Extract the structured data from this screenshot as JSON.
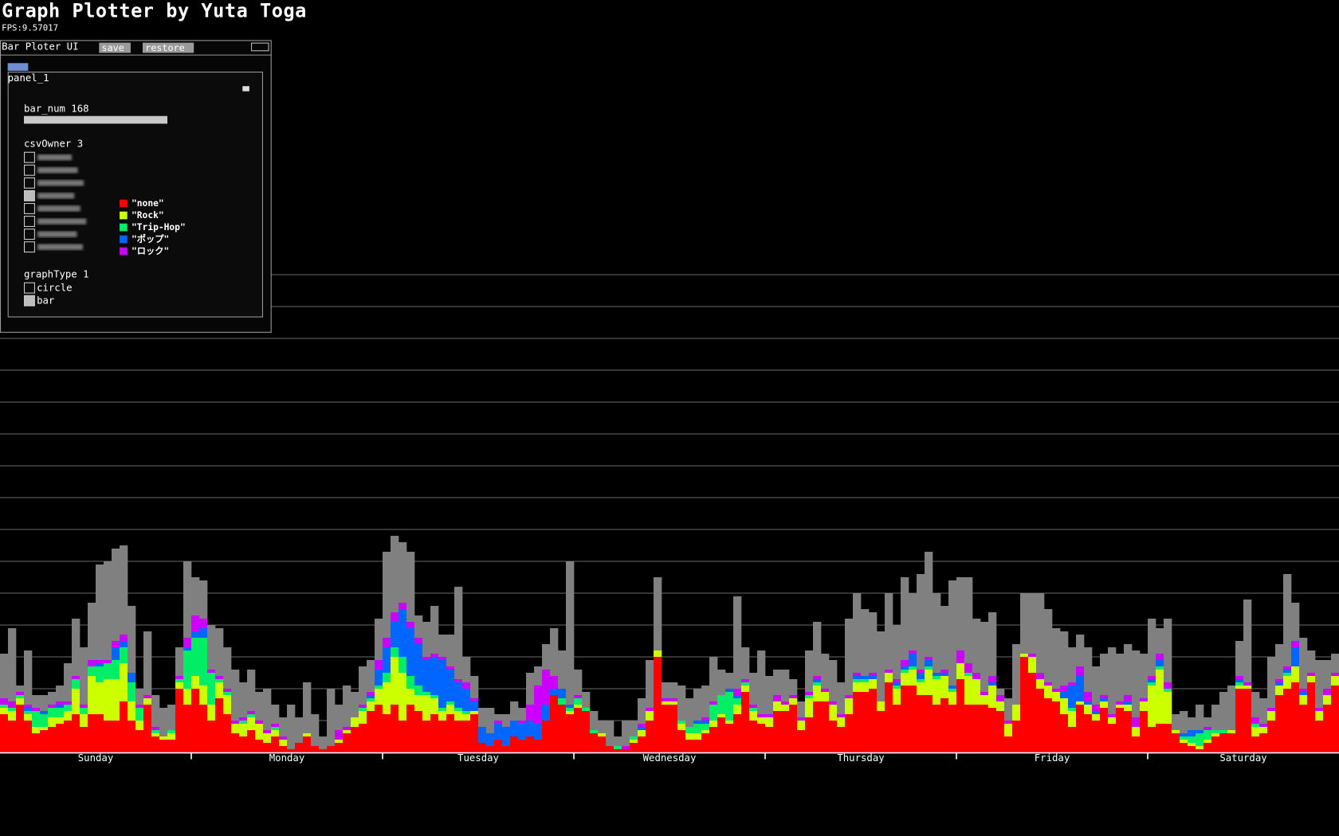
{
  "ui": {
    "title": "Graph Plotter by Yuta Toga",
    "fps": "FPS:9.57017",
    "window_title": "Bar Ploter UI",
    "save": "save",
    "restore": "restore",
    "panel": "panel_1",
    "bar_num": "bar_num 168",
    "csv_owner": {
      "label": "csvOwner 3",
      "checked": [
        false,
        false,
        false,
        true,
        false,
        false,
        false,
        false
      ]
    },
    "graph_type": {
      "label": "graphType 1",
      "options": [
        {
          "label": "circle",
          "checked": false
        },
        {
          "label": "bar",
          "checked": true
        }
      ]
    }
  },
  "chart_data": {
    "type": "bar",
    "stacked": true,
    "grid": true,
    "categories": [
      null,
      null,
      null,
      null,
      null,
      null,
      null,
      null,
      null,
      null,
      null,
      null,
      "Sunday",
      null,
      null,
      null,
      null,
      null,
      null,
      null,
      null,
      null,
      null,
      null,
      null,
      null,
      null,
      null,
      null,
      null,
      null,
      null,
      null,
      null,
      null,
      null,
      "Monday",
      null,
      null,
      null,
      null,
      null,
      null,
      null,
      null,
      null,
      null,
      null,
      null,
      null,
      null,
      null,
      null,
      null,
      null,
      null,
      null,
      null,
      null,
      null,
      "Tuesday",
      null,
      null,
      null,
      null,
      null,
      null,
      null,
      null,
      null,
      null,
      null,
      null,
      null,
      null,
      null,
      null,
      null,
      null,
      null,
      null,
      null,
      null,
      null,
      "Wednesday",
      null,
      null,
      null,
      null,
      null,
      null,
      null,
      null,
      null,
      null,
      null,
      null,
      null,
      null,
      null,
      null,
      null,
      null,
      null,
      null,
      null,
      null,
      null,
      "Thursday",
      null,
      null,
      null,
      null,
      null,
      null,
      null,
      null,
      null,
      null,
      null,
      null,
      null,
      null,
      null,
      null,
      null,
      null,
      null,
      null,
      null,
      null,
      null,
      "Friday",
      null,
      null,
      null,
      null,
      null,
      null,
      null,
      null,
      null,
      null,
      null,
      null,
      null,
      null,
      null,
      null,
      null,
      null,
      null,
      null,
      null,
      null,
      null,
      "Saturday",
      null,
      null,
      null,
      null,
      null,
      null,
      null,
      null,
      null,
      null,
      null
    ],
    "ylim": [
      0,
      15
    ],
    "yticks": [
      0,
      1,
      2,
      3,
      4,
      5,
      6,
      7,
      8,
      9,
      10,
      11,
      12,
      13,
      14,
      15
    ],
    "series": [
      {
        "name": "\"none\"",
        "color": "#ff0000",
        "values": [
          1.2,
          1.0,
          1.5,
          1.0,
          0.6,
          0.7,
          0.8,
          0.9,
          1.0,
          1.2,
          0.8,
          1.2,
          1.2,
          1.0,
          1.0,
          1.6,
          1.0,
          0.7,
          1.5,
          0.5,
          0.4,
          0.4,
          2.0,
          1.5,
          2.0,
          1.5,
          1.0,
          1.7,
          1.2,
          0.6,
          0.5,
          0.7,
          0.4,
          0.3,
          0.5,
          0.2,
          0.1,
          0.3,
          0.5,
          0.2,
          0.1,
          0.2,
          0.3,
          0.6,
          0.8,
          0.9,
          1.3,
          1.5,
          1.2,
          1.5,
          1.0,
          1.5,
          1.3,
          1.0,
          1.2,
          1.0,
          1.2,
          1.0,
          1.0,
          1.2,
          0.3,
          0.2,
          0.4,
          0.2,
          0.5,
          0.4,
          0.5,
          0.4,
          1.0,
          1.8,
          1.5,
          1.2,
          1.4,
          1.3,
          0.6,
          0.5,
          0.2,
          0.1,
          0.1,
          0.3,
          0.5,
          1.0,
          3.0,
          1.5,
          1.5,
          0.7,
          0.4,
          0.4,
          0.6,
          0.8,
          1.1,
          0.9,
          1.2,
          1.9,
          1.0,
          0.9,
          0.8,
          1.3,
          1.3,
          1.5,
          0.7,
          1.1,
          1.6,
          1.6,
          1.0,
          0.8,
          1.2,
          1.9,
          1.9,
          2.0,
          1.3,
          2.2,
          1.5,
          2.1,
          2.1,
          1.8,
          1.8,
          1.5,
          1.7,
          1.5,
          2.3,
          1.5,
          1.5,
          1.5,
          1.4,
          1.3,
          0.5,
          1.0,
          3.0,
          2.5,
          2.0,
          1.7,
          1.6,
          1.2,
          0.8,
          1.5,
          1.2,
          1.0,
          1.4,
          0.9,
          1.4,
          1.3,
          0.5,
          1.3,
          0.8,
          0.9,
          0.9,
          0.6,
          0.3,
          0.2,
          0.1,
          0.3,
          0.5,
          0.6,
          0.6,
          2.0,
          2.0,
          0.5,
          0.6,
          1.0,
          1.8,
          2.0,
          2.2,
          1.5,
          2.2,
          1.0,
          1.5,
          2.1
        ]
      },
      {
        "name": "\"Rock\"",
        "color": "#ccff00",
        "values": [
          0.2,
          0.3,
          0.2,
          0.2,
          0.2,
          0.1,
          0.3,
          0.2,
          0.3,
          0.8,
          0.4,
          1.2,
          1.0,
          1.3,
          1.3,
          1.2,
          0.6,
          0.3,
          0.2,
          0.1,
          0.1,
          0.2,
          0.2,
          0.5,
          0.4,
          0.6,
          0.5,
          0.5,
          0.6,
          0.3,
          0.4,
          0.4,
          0.5,
          0.3,
          0.2,
          0.2,
          0,
          0,
          0.1,
          0,
          0,
          0,
          0.1,
          0.1,
          0.3,
          0.4,
          0.3,
          0.5,
          1.0,
          1.5,
          1.5,
          0.5,
          0.5,
          0.8,
          0.5,
          0.3,
          0.3,
          0.3,
          0.2,
          0.1,
          0,
          0,
          0,
          0,
          0,
          0,
          0,
          0,
          0,
          0,
          0,
          0.1,
          0.1,
          0,
          0,
          0.1,
          0,
          0,
          0,
          0.1,
          0.2,
          0.3,
          0.2,
          0.1,
          0.1,
          0.2,
          0.2,
          0.2,
          0.1,
          0.2,
          0.1,
          0.1,
          0.3,
          0.2,
          0.3,
          0.2,
          0.3,
          0.3,
          0.2,
          0.2,
          0.3,
          0.6,
          0.5,
          0.3,
          0.5,
          0.3,
          0.5,
          0.3,
          0.3,
          0.3,
          0.3,
          0.3,
          0.5,
          0.4,
          0.5,
          0.4,
          0.8,
          0.8,
          0.7,
          0.4,
          0.5,
          0.9,
          0.8,
          0.3,
          0.7,
          0.3,
          0.4,
          0.5,
          0.1,
          0.5,
          0.3,
          0.4,
          0.3,
          0.5,
          0.5,
          0.1,
          0.3,
          0.2,
          0.2,
          0.2,
          0.1,
          0.2,
          0.3,
          0.3,
          1.3,
          1.7,
          1.0,
          0.1,
          0.1,
          0.1,
          0.1,
          0.1,
          0.1,
          0,
          0.1,
          0.1,
          0.1,
          0.3,
          0.2,
          0.3,
          0.3,
          0.4,
          0.5,
          0.3,
          0.2,
          0.3,
          0.3,
          0.3
        ]
      },
      {
        "name": "\"Trip-Hop\"",
        "color": "#00ee66",
        "values": [
          0.1,
          0.1,
          0.1,
          0.1,
          0.5,
          0.4,
          0.3,
          0.3,
          0.2,
          0.3,
          0.2,
          0.3,
          0.5,
          0.5,
          0.6,
          0.5,
          0.6,
          0.4,
          0,
          0.1,
          0,
          0.1,
          0.1,
          1.2,
          1.2,
          1.5,
          1.0,
          0.1,
          0.1,
          0,
          0.1,
          0.1,
          0,
          0,
          0.1,
          0,
          0,
          0,
          0,
          0,
          0,
          0,
          0,
          0,
          0,
          0.1,
          0.1,
          0.1,
          0.3,
          0.3,
          0.5,
          0.4,
          0.3,
          0.1,
          0.1,
          0.1,
          0.1,
          0.1,
          0.1,
          0,
          0,
          0,
          0,
          0,
          0,
          0,
          0,
          0,
          0,
          0,
          0.2,
          0.1,
          0.2,
          0.1,
          0.1,
          0,
          0,
          0.1,
          0,
          0.1,
          0,
          0,
          0,
          0,
          0,
          0.1,
          0.2,
          0.3,
          0.2,
          0.5,
          0.6,
          0.9,
          0.2,
          0.1,
          0.1,
          0,
          0,
          0,
          0,
          0,
          0,
          0.1,
          0.1,
          0,
          0,
          0,
          0,
          0.1,
          0.1,
          0,
          0,
          0,
          0.1,
          0.1,
          0.1,
          0.1,
          0.1,
          0.1,
          0,
          0.1,
          0,
          0.1,
          0,
          0,
          0,
          0,
          0,
          0,
          0,
          0,
          0,
          0,
          0,
          0,
          0.1,
          0,
          0,
          0,
          0,
          0,
          0,
          0,
          0,
          0,
          0.1,
          0.1,
          0.1,
          0,
          0.1,
          0.2,
          0.4,
          0.3,
          0.1,
          0.1,
          0,
          0.1,
          0,
          0.1,
          0,
          0,
          0,
          0.1,
          0,
          0,
          0,
          0,
          0,
          0
        ]
      },
      {
        "name": "\"ポップ\"",
        "color": "#0066ff",
        "values": [
          0,
          0,
          0,
          0.1,
          0,
          0.1,
          0,
          0.1,
          0,
          0,
          0,
          0,
          0.1,
          0,
          0.4,
          0.2,
          0.3,
          0,
          0,
          0,
          0,
          0,
          0,
          0.1,
          0.2,
          0.3,
          0,
          0,
          0,
          0,
          0,
          0,
          0,
          0,
          0,
          0,
          0,
          0,
          0,
          0,
          0,
          0,
          0,
          0,
          0,
          0,
          0.1,
          0.5,
          0.8,
          0.8,
          1.5,
          1.5,
          1.3,
          1.0,
          1.2,
          1.5,
          1.0,
          0.8,
          0.7,
          0.3,
          0.5,
          0.4,
          0.5,
          0.6,
          0.5,
          0.5,
          0.5,
          0.5,
          0.5,
          0.2,
          0.3,
          0.1,
          0,
          0,
          0,
          0,
          0,
          0,
          0,
          0,
          0.1,
          0,
          0,
          0,
          0,
          0,
          0,
          0.1,
          0.1,
          0,
          0,
          0.1,
          0.1,
          0,
          0,
          0,
          0,
          0,
          0,
          0,
          0,
          0,
          0.1,
          0,
          0,
          0,
          0,
          0.1,
          0.1,
          0.1,
          0,
          0,
          0.1,
          0.1,
          0.4,
          0.2,
          0.2,
          0.1,
          0.1,
          0.1,
          0,
          0,
          0,
          0,
          0.1,
          0,
          0,
          0,
          0,
          0,
          0,
          0,
          0,
          0.2,
          0.7,
          0.8,
          0.1,
          0.1,
          0.1,
          0,
          0,
          0.1,
          0,
          0,
          0.1,
          0.2,
          0,
          0,
          0.1,
          0.2,
          0.1,
          0,
          0,
          0,
          0,
          0.1,
          0,
          0,
          0,
          0,
          0.1,
          0.1,
          0.6,
          0.1,
          0,
          0,
          0,
          0
        ]
      },
      {
        "name": "\"ロック\"",
        "color": "#cc00ff",
        "values": [
          0.2,
          0.2,
          0.1,
          0.1,
          0.1,
          0,
          0.1,
          0.1,
          0.1,
          0.1,
          0.1,
          0.2,
          0.1,
          0.1,
          0.2,
          0.2,
          0,
          0.1,
          0.1,
          0.1,
          0,
          0,
          0.1,
          0.3,
          0.5,
          0.3,
          0.1,
          0.1,
          0.1,
          0.1,
          0.1,
          0.1,
          0.1,
          0.1,
          0.1,
          0.1,
          0,
          0,
          0,
          0,
          0,
          0,
          0.3,
          0.1,
          0,
          0.1,
          0.1,
          0.3,
          0.3,
          0.3,
          0.2,
          0.2,
          0.2,
          0.1,
          0.1,
          0.1,
          0.1,
          0.1,
          0.2,
          0.1,
          0,
          0,
          0.1,
          0,
          0,
          0.1,
          0.5,
          1.2,
          1.1,
          0.4,
          0,
          0,
          0.1,
          0,
          0,
          0,
          0,
          0,
          0.1,
          0,
          0.1,
          0.1,
          0,
          0.1,
          0.1,
          0,
          0,
          0,
          0.1,
          0.1,
          0,
          0,
          0.2,
          0.1,
          0.1,
          0.1,
          0.1,
          0.2,
          0.1,
          0.1,
          0.1,
          0.1,
          0.1,
          0.1,
          0.1,
          0.1,
          0.1,
          0.1,
          0,
          0.1,
          0,
          0.1,
          0.1,
          0.2,
          0.1,
          0.1,
          0.1,
          0,
          0.1,
          0,
          0.4,
          0.3,
          0.2,
          0.1,
          0.2,
          0.2,
          0.1,
          0,
          0,
          0.1,
          0.2,
          0.1,
          0.1,
          0.2,
          0.1,
          0.3,
          0.3,
          0.2,
          0.1,
          0.1,
          0.1,
          0.2,
          0.3,
          0.1,
          0.1,
          0.2,
          0.2,
          0,
          0,
          0,
          0,
          0.1,
          0,
          0,
          0,
          0.1,
          0.1,
          0.2,
          0.1,
          0.1,
          0.1,
          0.1,
          0.2,
          0.1,
          0.1,
          0.1,
          0.2,
          0.1
        ]
      },
      {
        "color": "#808080",
        "values": [
          1.4,
          2.3,
          0.2,
          1.7,
          0.4,
          0.5,
          0.4,
          0.5,
          1.2,
          1.8,
          1.8,
          1.8,
          3.0,
          3.1,
          2.9,
          2.8,
          2.1,
          0.5,
          2.0,
          1.0,
          0.9,
          0.8,
          0.9,
          2.4,
          1.2,
          1.2,
          1.4,
          1.5,
          1.3,
          1.6,
          1.1,
          1.3,
          0.9,
          1.3,
          0.6,
          0.6,
          1.4,
          0.8,
          1.6,
          1.0,
          0.4,
          1.8,
          0.8,
          1.3,
          0.8,
          1.2,
          1.0,
          1.3,
          2.7,
          2.4,
          1.9,
          2.2,
          0.7,
          1.1,
          1.5,
          0.7,
          1.0,
          2.9,
          0.8,
          0.7,
          0.6,
          0.8,
          0.2,
          0.4,
          0.6,
          0.4,
          1.0,
          0.6,
          0.8,
          1.5,
          1.2,
          4.5,
          0.8,
          0.5,
          0.6,
          0.4,
          0.8,
          0.3,
          0.8,
          0.5,
          0.8,
          1.5,
          2.3,
          0.5,
          0.5,
          1.1,
          0.9,
          1.0,
          1.0,
          1.4,
          0.8,
          0.5,
          2.9,
          1.0,
          1.0,
          2.0,
          1.2,
          0.8,
          1.0,
          0.5,
          0.5,
          1.3,
          1.7,
          1.1,
          1.3,
          1.0,
          2.4,
          2.5,
          2.1,
          1.9,
          2.2,
          2.4,
          1.7,
          2.6,
          1.8,
          3.0,
          3.3,
          2.5,
          2.0,
          3.3,
          2.3,
          2.7,
          1.7,
          2.2,
          2.0,
          0.2,
          0.7,
          1.9,
          1.9,
          1.9,
          2.5,
          2.3,
          1.9,
          1.7,
          1.1,
          1.0,
          1.4,
          1.2,
          1.3,
          2.1,
          1.5,
          1.6,
          2.1,
          1.4,
          1.8,
          0.8,
          2.0,
          0.5,
          0.7,
          0.4,
          0.8,
          0.3,
          0.8,
          1.2,
          1.4,
          1.1,
          2.6,
          0.8,
          0.8,
          1.6,
          1.1,
          2.9,
          1.2,
          1.6,
          0.7,
          1.5,
          0.9,
          0.6
        ]
      }
    ]
  }
}
